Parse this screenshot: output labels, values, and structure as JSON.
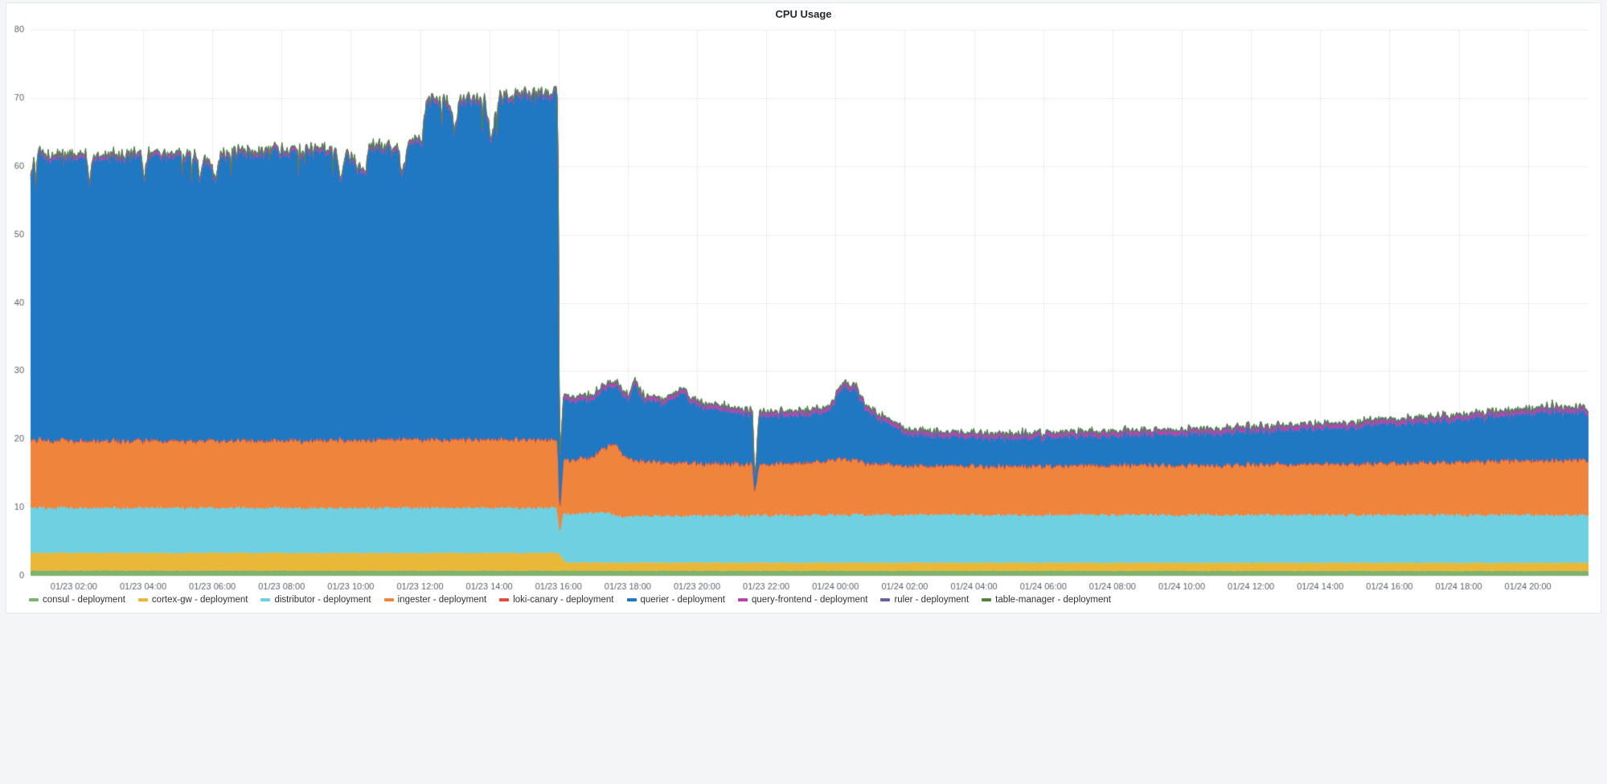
{
  "panel": {
    "title": "CPU Usage"
  },
  "colors": {
    "page_background": "#f4f5f7",
    "panel_background": "#ffffff",
    "grid": "rgba(0,0,0,0.07)",
    "axis_text": "#5a5e66"
  },
  "chart_data": {
    "type": "area",
    "stacked": true,
    "title": "CPU Usage",
    "xlabel": "",
    "ylabel": "",
    "grid": true,
    "legend_position": "bottom",
    "ylim": [
      0,
      80
    ],
    "y_ticks": [
      0,
      10,
      20,
      30,
      40,
      50,
      60,
      70,
      80
    ],
    "x_range_hours": [
      0,
      45
    ],
    "x_ticks": [
      {
        "t": 1.25,
        "label": "01/23 02:00"
      },
      {
        "t": 3.25,
        "label": "01/23 04:00"
      },
      {
        "t": 5.25,
        "label": "01/23 06:00"
      },
      {
        "t": 7.25,
        "label": "01/23 08:00"
      },
      {
        "t": 9.25,
        "label": "01/23 10:00"
      },
      {
        "t": 11.25,
        "label": "01/23 12:00"
      },
      {
        "t": 13.25,
        "label": "01/23 14:00"
      },
      {
        "t": 15.25,
        "label": "01/23 16:00"
      },
      {
        "t": 17.25,
        "label": "01/23 18:00"
      },
      {
        "t": 19.25,
        "label": "01/23 20:00"
      },
      {
        "t": 21.25,
        "label": "01/23 22:00"
      },
      {
        "t": 23.25,
        "label": "01/24 00:00"
      },
      {
        "t": 25.25,
        "label": "01/24 02:00"
      },
      {
        "t": 27.25,
        "label": "01/24 04:00"
      },
      {
        "t": 29.25,
        "label": "01/24 06:00"
      },
      {
        "t": 31.25,
        "label": "01/24 08:00"
      },
      {
        "t": 33.25,
        "label": "01/24 10:00"
      },
      {
        "t": 35.25,
        "label": "01/24 12:00"
      },
      {
        "t": 37.25,
        "label": "01/24 14:00"
      },
      {
        "t": 39.25,
        "label": "01/24 16:00"
      },
      {
        "t": 41.25,
        "label": "01/24 18:00"
      },
      {
        "t": 43.25,
        "label": "01/24 20:00"
      }
    ],
    "series": [
      {
        "name": "consul - deployment",
        "color": "#7EB26D",
        "keyframes": [
          [
            0,
            0.75
          ],
          [
            45,
            0.7
          ]
        ],
        "noise": [
          [
            0,
            0.05
          ],
          [
            45,
            0.05
          ]
        ]
      },
      {
        "name": "cortex-gw - deployment",
        "color": "#EAB839",
        "keyframes": [
          [
            0,
            2.6
          ],
          [
            15.25,
            2.6
          ],
          [
            15.45,
            1.2
          ],
          [
            45,
            1.2
          ]
        ],
        "noise": [
          [
            0,
            0.1
          ],
          [
            15.25,
            0.1
          ],
          [
            15.45,
            0.06
          ],
          [
            45,
            0.06
          ]
        ]
      },
      {
        "name": "distributor - deployment",
        "color": "#6ED0E0",
        "keyframes": [
          [
            0,
            6.6
          ],
          [
            15.2,
            6.6
          ],
          [
            15.28,
            3.0
          ],
          [
            15.4,
            7.0
          ],
          [
            16.6,
            7.4
          ],
          [
            17.0,
            6.8
          ],
          [
            20.9,
            6.9
          ],
          [
            23,
            7.0
          ],
          [
            45,
            7.0
          ]
        ],
        "noise": [
          [
            0,
            0.22
          ],
          [
            45,
            0.25
          ]
        ]
      },
      {
        "name": "ingester - deployment",
        "color": "#EF843C",
        "keyframes": [
          [
            0,
            9.8
          ],
          [
            5,
            9.7
          ],
          [
            10,
            9.9
          ],
          [
            15.23,
            9.9
          ],
          [
            15.28,
            2.5
          ],
          [
            15.4,
            7.8
          ],
          [
            16.2,
            8.0
          ],
          [
            16.9,
            10.4
          ],
          [
            17.1,
            9.0
          ],
          [
            17.5,
            8.0
          ],
          [
            18.5,
            7.7
          ],
          [
            19.5,
            7.5
          ],
          [
            20.85,
            7.4
          ],
          [
            20.92,
            3.0
          ],
          [
            21.05,
            7.4
          ],
          [
            22.5,
            7.6
          ],
          [
            23.4,
            8.1
          ],
          [
            24.5,
            7.3
          ],
          [
            26,
            7.0
          ],
          [
            30,
            7.1
          ],
          [
            34,
            7.2
          ],
          [
            38,
            7.4
          ],
          [
            41,
            7.6
          ],
          [
            43,
            7.9
          ],
          [
            44.5,
            8.0
          ],
          [
            45,
            7.8
          ]
        ],
        "noise": [
          [
            0,
            0.3
          ],
          [
            45,
            0.3
          ]
        ]
      },
      {
        "name": "loki-canary - deployment",
        "color": "#E24D42",
        "keyframes": [
          [
            0,
            0.15
          ],
          [
            45,
            0.15
          ]
        ],
        "noise": [
          [
            0,
            0.02
          ],
          [
            45,
            0.02
          ]
        ]
      },
      {
        "name": "querier - deployment",
        "color": "#1F78C1",
        "keyframes": [
          [
            0,
            38.5
          ],
          [
            0.2,
            41.3
          ],
          [
            1.6,
            41.3
          ],
          [
            1.7,
            36.5
          ],
          [
            1.8,
            41.3
          ],
          [
            3.2,
            41.6
          ],
          [
            3.3,
            37.5
          ],
          [
            3.4,
            41.6
          ],
          [
            4.8,
            41.4
          ],
          [
            4.9,
            37.0
          ],
          [
            5.0,
            41.4
          ],
          [
            5.35,
            38.0
          ],
          [
            5.5,
            41.6
          ],
          [
            7.0,
            42.0
          ],
          [
            8.8,
            42.2
          ],
          [
            8.95,
            37.5
          ],
          [
            9.1,
            42.2
          ],
          [
            9.65,
            38.5
          ],
          [
            9.8,
            42.3
          ],
          [
            10.6,
            42.6
          ],
          [
            10.75,
            38.0
          ],
          [
            10.9,
            43.0
          ],
          [
            11.3,
            43.5
          ],
          [
            11.45,
            49.3
          ],
          [
            12.1,
            49.0
          ],
          [
            12.25,
            44.5
          ],
          [
            12.4,
            49.2
          ],
          [
            13.1,
            49.5
          ],
          [
            13.3,
            43.5
          ],
          [
            13.55,
            49.8
          ],
          [
            14.6,
            50.2
          ],
          [
            15.23,
            50.5
          ],
          [
            15.28,
            6.5
          ],
          [
            15.4,
            8.6
          ],
          [
            16.0,
            8.4
          ],
          [
            17.3,
            8.6
          ],
          [
            17.45,
            11.5
          ],
          [
            17.65,
            9.0
          ],
          [
            18.3,
            8.6
          ],
          [
            18.85,
            10.2
          ],
          [
            19.1,
            8.6
          ],
          [
            19.9,
            7.8
          ],
          [
            20.5,
            7.3
          ],
          [
            20.85,
            7.1
          ],
          [
            20.92,
            1.2
          ],
          [
            21.05,
            7.0
          ],
          [
            22.3,
            6.9
          ],
          [
            23.1,
            7.3
          ],
          [
            23.45,
            10.5
          ],
          [
            23.85,
            10.1
          ],
          [
            24.1,
            7.9
          ],
          [
            24.7,
            5.9
          ],
          [
            25.3,
            4.7
          ],
          [
            26.2,
            4.2
          ],
          [
            27.5,
            4.0
          ],
          [
            29.5,
            4.1
          ],
          [
            31.5,
            4.3
          ],
          [
            33.5,
            4.5
          ],
          [
            35.5,
            4.8
          ],
          [
            37.5,
            5.2
          ],
          [
            39.5,
            5.7
          ],
          [
            41,
            6.1
          ],
          [
            42,
            6.4
          ],
          [
            43,
            6.8
          ],
          [
            44,
            7.1
          ],
          [
            45,
            6.8
          ]
        ],
        "noise": [
          [
            0,
            0.85
          ],
          [
            15.2,
            0.85
          ],
          [
            15.35,
            0.35
          ],
          [
            45,
            0.4
          ]
        ],
        "spikes": {
          "prob": 0.028,
          "max_depth": 4.5,
          "t_max": 15.2
        }
      },
      {
        "name": "query-frontend - deployment",
        "color": "#BA43A9",
        "keyframes": [
          [
            0,
            0.35
          ],
          [
            15.2,
            0.35
          ],
          [
            15.4,
            0.45
          ],
          [
            45,
            0.5
          ]
        ],
        "noise": [
          [
            0,
            0.04
          ],
          [
            45,
            0.05
          ]
        ]
      },
      {
        "name": "ruler - deployment",
        "color": "#705DA0",
        "keyframes": [
          [
            0,
            0.22
          ],
          [
            45,
            0.25
          ]
        ],
        "noise": [
          [
            0,
            0.03
          ],
          [
            45,
            0.03
          ]
        ]
      },
      {
        "name": "table-manager - deployment",
        "color": "#508642",
        "keyframes": [
          [
            0,
            0.08
          ],
          [
            45,
            0.08
          ]
        ],
        "noise": [
          [
            0,
            0.01
          ],
          [
            45,
            0.01
          ]
        ]
      }
    ]
  }
}
